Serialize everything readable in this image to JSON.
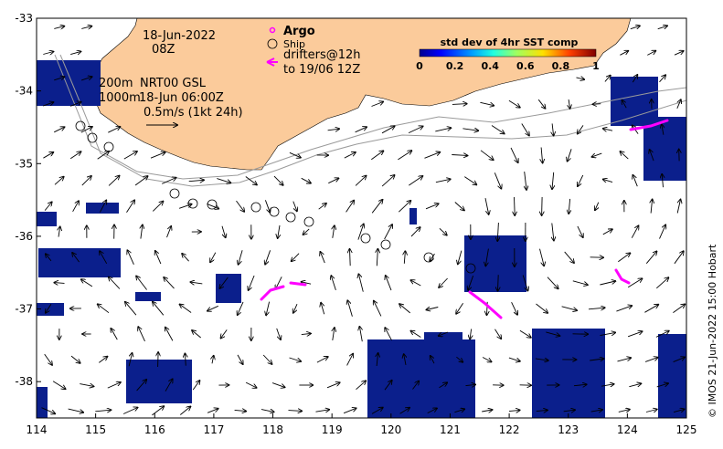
{
  "map": {
    "x_ticks": [
      "114",
      "115",
      "116",
      "117",
      "118",
      "119",
      "120",
      "121",
      "122",
      "123",
      "124",
      "125"
    ],
    "y_ticks": [
      "-33",
      "-34",
      "-35",
      "-36",
      "-37",
      "-38"
    ],
    "lon_range": [
      114,
      125
    ],
    "lat_range": [
      -38.5,
      -33
    ]
  },
  "annotations": {
    "date": "18-Jun-2022",
    "time": "08Z",
    "depth_200": "200m",
    "depth_1000": "1000m",
    "product": "NRT00 GSL",
    "product_time": "18-Jun 06:00Z",
    "scale_label": "0.5m/s (1kt 24h)"
  },
  "legend": {
    "argo_label": "Argo",
    "ship_label": "Ship",
    "drifters_line1": "drifters@12h",
    "drifters_line2": "to 19/06 12Z"
  },
  "colorbar": {
    "title": "std dev of 4hr SST comp",
    "ticks": [
      "0",
      "0.2",
      "0.4",
      "0.6",
      "0.8",
      "1"
    ]
  },
  "credit": "© IMOS 21-Jun-2022 15:00 Hobart",
  "colors": {
    "land": "#fbcb9b",
    "argo": "#ff00ff",
    "drifter": "#ff00ff",
    "sst_patch": "#0b1f8c"
  }
}
